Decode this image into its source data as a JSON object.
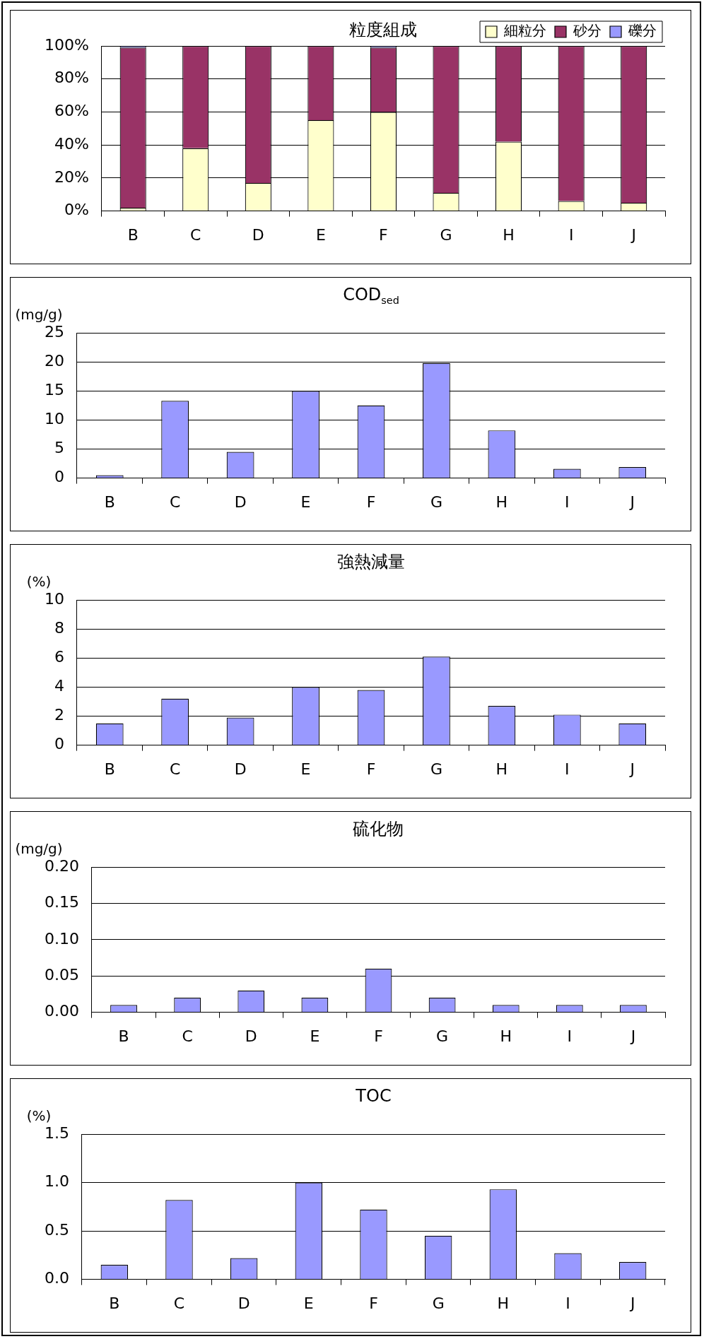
{
  "chart_data": [
    {
      "type": "bar",
      "title": "粒度組成",
      "categories": [
        "B",
        "C",
        "D",
        "E",
        "F",
        "G",
        "H",
        "I",
        "J"
      ],
      "stacked": true,
      "series": [
        {
          "name": "細粒分",
          "color": "#ffffcc",
          "values": [
            2,
            38,
            17,
            55,
            60,
            11,
            42,
            6,
            5
          ]
        },
        {
          "name": "砂分",
          "color": "#993366",
          "values": [
            97,
            62,
            83,
            45,
            39,
            89,
            58,
            94,
            95
          ]
        },
        {
          "name": "礫分",
          "color": "#9999ff",
          "values": [
            1,
            0,
            0,
            0,
            1,
            0,
            0,
            0,
            0
          ]
        }
      ],
      "ylim": [
        0,
        100
      ],
      "yticks": [
        {
          "value": 0,
          "label": "0%"
        },
        {
          "value": 20,
          "label": "20%"
        },
        {
          "value": 40,
          "label": "40%"
        },
        {
          "value": 60,
          "label": "60%"
        },
        {
          "value": 80,
          "label": "80%"
        },
        {
          "value": 100,
          "label": "100%"
        }
      ],
      "grid": "y",
      "legend": "top right"
    },
    {
      "type": "bar",
      "title": "COD$_{sed}$",
      "ylabel": "(mg/g)",
      "categories": [
        "B",
        "C",
        "D",
        "E",
        "F",
        "G",
        "H",
        "I",
        "J"
      ],
      "values": [
        0.5,
        13.3,
        4.5,
        15,
        12.5,
        19.8,
        8.2,
        1.6,
        1.9
      ],
      "color": "#9999ff",
      "ylim": [
        0,
        25
      ],
      "yticks": [
        0,
        5,
        10,
        15,
        20,
        25
      ],
      "grid": "y"
    },
    {
      "type": "bar",
      "title": "強熱減量",
      "ylabel": "(%)",
      "categories": [
        "B",
        "C",
        "D",
        "E",
        "F",
        "G",
        "H",
        "I",
        "J"
      ],
      "values": [
        1.5,
        3.2,
        1.9,
        4.0,
        3.8,
        6.1,
        2.7,
        2.1,
        1.5
      ],
      "color": "#9999ff",
      "ylim": [
        0,
        10
      ],
      "yticks": [
        0,
        2,
        4,
        6,
        8,
        10
      ],
      "grid": "y"
    },
    {
      "type": "bar",
      "title": "硫化物",
      "ylabel": "(mg/g)",
      "categories": [
        "B",
        "C",
        "D",
        "E",
        "F",
        "G",
        "H",
        "I",
        "J"
      ],
      "values": [
        0.01,
        0.02,
        0.03,
        0.02,
        0.06,
        0.02,
        0.01,
        0.01,
        0.01
      ],
      "color": "#9999ff",
      "ylim": [
        0,
        0.2
      ],
      "yticks": [
        {
          "value": 0,
          "label": "0.00"
        },
        0.05,
        {
          "value": 0.1,
          "label": "0.10"
        },
        0.15,
        {
          "value": 0.2,
          "label": "0.20"
        }
      ],
      "grid": "y"
    },
    {
      "type": "bar",
      "title": "TOC",
      "ylabel": "(%)",
      "categories": [
        "B",
        "C",
        "D",
        "E",
        "F",
        "G",
        "H",
        "I",
        "J"
      ],
      "values": [
        0.15,
        0.82,
        0.22,
        1.0,
        0.72,
        0.45,
        0.93,
        0.27,
        0.18
      ],
      "color": "#9999ff",
      "ylim": [
        0,
        1.5
      ],
      "yticks": [
        {
          "value": 0,
          "label": "0.0"
        },
        0.5,
        {
          "value": 1,
          "label": "1.0"
        },
        1.5
      ],
      "grid": "y"
    }
  ]
}
